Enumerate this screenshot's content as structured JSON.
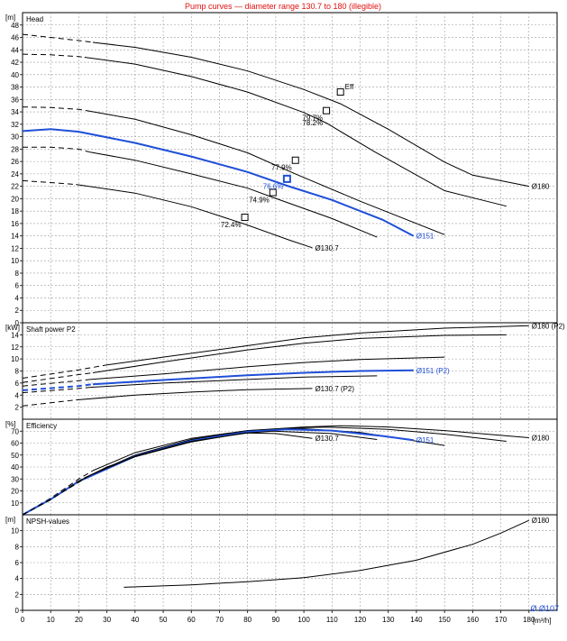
{
  "header_note": "Pump curves — diameter range 130.7 to 180 (illegible)",
  "x_axis": {
    "unit": "[m³/h]",
    "min": 0,
    "max": 190,
    "ticks": [
      0,
      10,
      20,
      30,
      40,
      50,
      60,
      70,
      80,
      90,
      100,
      110,
      120,
      130,
      140,
      150,
      160,
      170,
      180
    ]
  },
  "footer_note": "Ø Ø107",
  "chart_data": [
    {
      "type": "line",
      "panel": "head",
      "title": "Head",
      "ylabel": "[m]",
      "ylim": [
        0,
        50
      ],
      "yticks": [
        0,
        2,
        4,
        6,
        8,
        10,
        12,
        14,
        16,
        18,
        20,
        22,
        24,
        26,
        28,
        30,
        32,
        34,
        36,
        38,
        40,
        42,
        44,
        46,
        48
      ],
      "grid": true,
      "series": [
        {
          "name": "Ø180",
          "color": "#000000",
          "dashed": [
            [
              0,
              46.5
            ],
            [
              10,
              46.0
            ],
            [
              20,
              45.5
            ],
            [
              25,
              45.2
            ]
          ],
          "points": [
            [
              25,
              45.2
            ],
            [
              40,
              44.4
            ],
            [
              60,
              42.8
            ],
            [
              80,
              40.6
            ],
            [
              100,
              37.6
            ],
            [
              113,
              35.3
            ],
            [
              130,
              31.2
            ],
            [
              150,
              25.9
            ],
            [
              160,
              23.8
            ],
            [
              180,
              22.0
            ]
          ]
        },
        {
          "name": "",
          "color": "#000000",
          "dashed": [
            [
              0,
              43.3
            ],
            [
              10,
              43.2
            ],
            [
              20,
              42.9
            ],
            [
              22,
              42.8
            ]
          ],
          "points": [
            [
              22,
              42.8
            ],
            [
              40,
              41.7
            ],
            [
              60,
              39.7
            ],
            [
              80,
              37.2
            ],
            [
              100,
              33.9
            ],
            [
              108,
              32.2
            ],
            [
              125,
              27.6
            ],
            [
              150,
              21.3
            ],
            [
              172,
              18.8
            ]
          ]
        },
        {
          "name": "",
          "color": "#000000",
          "dashed": [
            [
              0,
              34.8
            ],
            [
              10,
              34.7
            ],
            [
              20,
              34.4
            ],
            [
              24,
              34.1
            ]
          ],
          "points": [
            [
              24,
              34.1
            ],
            [
              40,
              32.8
            ],
            [
              60,
              30.3
            ],
            [
              80,
              27.4
            ],
            [
              97,
              24.0
            ],
            [
              120,
              19.6
            ],
            [
              150,
              14.2
            ]
          ]
        },
        {
          "name": "Ø151",
          "color": "#1f4fd8",
          "bold": true,
          "dashed": [],
          "points": [
            [
              0,
              30.9
            ],
            [
              10,
              31.2
            ],
            [
              20,
              30.8
            ],
            [
              40,
              29.0
            ],
            [
              60,
              26.8
            ],
            [
              80,
              24.3
            ],
            [
              94,
              22.1
            ],
            [
              110,
              19.8
            ],
            [
              128,
              16.6
            ],
            [
              139,
              14.0
            ]
          ]
        },
        {
          "name": "",
          "color": "#000000",
          "dashed": [
            [
              0,
              28.3
            ],
            [
              10,
              28.3
            ],
            [
              20,
              28.0
            ],
            [
              24,
              27.5
            ]
          ],
          "points": [
            [
              24,
              27.5
            ],
            [
              40,
              26.2
            ],
            [
              60,
              24.0
            ],
            [
              80,
              21.7
            ],
            [
              89,
              20.2
            ],
            [
              110,
              16.8
            ],
            [
              126,
              13.8
            ]
          ]
        },
        {
          "name": "Ø130.7",
          "color": "#000000",
          "dashed": [
            [
              0,
              22.9
            ],
            [
              10,
              22.6
            ],
            [
              19,
              22.3
            ]
          ],
          "points": [
            [
              19,
              22.3
            ],
            [
              40,
              20.9
            ],
            [
              60,
              18.7
            ],
            [
              79,
              15.9
            ],
            [
              95,
              13.3
            ],
            [
              103,
              12.1
            ]
          ]
        }
      ],
      "markers": [
        {
          "x": 113,
          "y": 37.2,
          "label": "Eff",
          "color": "#000000"
        },
        {
          "x": 108,
          "y": 34.2,
          "label": "79.7%",
          "color": "#000000"
        },
        {
          "x": 97,
          "y": 26.2,
          "label": "77.9%",
          "color": "#000000"
        },
        {
          "x": 94,
          "y": 23.2,
          "label": "76.6%",
          "color": "#1f4fd8"
        },
        {
          "x": 89,
          "y": 21.0,
          "label": "74.9%",
          "color": "#000000"
        },
        {
          "x": 79,
          "y": 17.0,
          "label": "72.4%",
          "color": "#000000"
        }
      ],
      "extra_labels": [
        {
          "x": 108,
          "y": 33.4,
          "text": "78.2%",
          "color": "#000000"
        }
      ]
    },
    {
      "type": "line",
      "panel": "shaft_power",
      "title": "Shaft power P2",
      "ylabel": "[kW]",
      "ylim": [
        0,
        16
      ],
      "yticks": [
        2,
        4,
        6,
        8,
        10,
        12,
        14
      ],
      "grid": true,
      "series": [
        {
          "name": "Ø180 (P2)",
          "color": "#000000",
          "dashed": [
            [
              0,
              6.8
            ],
            [
              20,
              8.2
            ],
            [
              30,
              9.0
            ]
          ],
          "points": [
            [
              30,
              9.0
            ],
            [
              50,
              10.3
            ],
            [
              80,
              12.2
            ],
            [
              100,
              13.5
            ],
            [
              120,
              14.3
            ],
            [
              150,
              15.1
            ],
            [
              180,
              15.5
            ]
          ]
        },
        {
          "name": "",
          "color": "#000000",
          "dashed": [
            [
              0,
              6.1
            ],
            [
              20,
              7.4
            ],
            [
              25,
              7.7
            ]
          ],
          "points": [
            [
              25,
              7.7
            ],
            [
              50,
              9.5
            ],
            [
              80,
              11.5
            ],
            [
              100,
              12.6
            ],
            [
              120,
              13.4
            ],
            [
              150,
              13.9
            ],
            [
              172,
              14.0
            ]
          ]
        },
        {
          "name": "",
          "color": "#000000",
          "dashed": [
            [
              0,
              5.5
            ],
            [
              20,
              6.4
            ],
            [
              24,
              6.6
            ]
          ],
          "points": [
            [
              24,
              6.6
            ],
            [
              50,
              7.5
            ],
            [
              80,
              8.7
            ],
            [
              100,
              9.4
            ],
            [
              120,
              9.9
            ],
            [
              150,
              10.3
            ]
          ]
        },
        {
          "name": "Ø151 (P2)",
          "color": "#1f4fd8",
          "bold": true,
          "dashed": [
            [
              0,
              4.8
            ],
            [
              20,
              5.5
            ],
            [
              25,
              5.8
            ]
          ],
          "points": [
            [
              25,
              5.8
            ],
            [
              50,
              6.5
            ],
            [
              80,
              7.3
            ],
            [
              100,
              7.7
            ],
            [
              120,
              8.0
            ],
            [
              139,
              8.1
            ]
          ]
        },
        {
          "name": "",
          "color": "#000000",
          "dashed": [
            [
              0,
              4.4
            ],
            [
              20,
              5.1
            ],
            [
              24,
              5.3
            ]
          ],
          "points": [
            [
              24,
              5.3
            ],
            [
              50,
              6.0
            ],
            [
              80,
              6.6
            ],
            [
              100,
              7.0
            ],
            [
              126,
              7.2
            ]
          ]
        },
        {
          "name": "Ø130.7 (P2)",
          "color": "#000000",
          "dashed": [
            [
              0,
              2.2
            ],
            [
              19,
              3.2
            ]
          ],
          "points": [
            [
              19,
              3.2
            ],
            [
              40,
              4.0
            ],
            [
              60,
              4.5
            ],
            [
              80,
              4.9
            ],
            [
              103,
              5.1
            ]
          ]
        }
      ]
    },
    {
      "type": "line",
      "panel": "efficiency",
      "title": "Efficiency",
      "ylabel": "[%]",
      "ylim": [
        0,
        80
      ],
      "yticks": [
        10,
        20,
        30,
        40,
        50,
        60,
        70
      ],
      "grid": true,
      "series": [
        {
          "name": "Ø180",
          "color": "#000000",
          "dashed": [
            [
              0,
              0
            ],
            [
              10,
              14
            ],
            [
              20,
              30
            ],
            [
              25,
              37
            ]
          ],
          "points": [
            [
              25,
              37
            ],
            [
              40,
              52
            ],
            [
              60,
              64
            ],
            [
              80,
              70.5
            ],
            [
              100,
              73.5
            ],
            [
              113,
              74.6
            ],
            [
              130,
              73.5
            ],
            [
              150,
              70.5
            ],
            [
              160,
              68.5
            ],
            [
              180,
              64.5
            ]
          ]
        },
        {
          "name": "",
          "color": "#000000",
          "dashed": [
            [
              0,
              0
            ],
            [
              10,
              13.5
            ],
            [
              22,
              31
            ]
          ],
          "points": [
            [
              22,
              31
            ],
            [
              40,
              50
            ],
            [
              60,
              63
            ],
            [
              80,
              70
            ],
            [
              100,
              73
            ],
            [
              108,
              73.4
            ],
            [
              130,
              71.5
            ],
            [
              150,
              67.5
            ],
            [
              172,
              61.5
            ]
          ]
        },
        {
          "name": "",
          "color": "#000000",
          "dashed": [
            [
              0,
              0
            ],
            [
              10,
              13
            ],
            [
              24,
              33
            ]
          ],
          "points": [
            [
              24,
              33
            ],
            [
              40,
              50
            ],
            [
              60,
              63
            ],
            [
              80,
              70.5
            ],
            [
              97,
              72.5
            ],
            [
              120,
              69
            ],
            [
              150,
              58
            ]
          ]
        },
        {
          "name": "Ø151",
          "color": "#1f4fd8",
          "bold": true,
          "dashed": [],
          "points": [
            [
              0,
              0
            ],
            [
              10,
              13
            ],
            [
              20,
              28
            ],
            [
              40,
              49
            ],
            [
              60,
              62
            ],
            [
              80,
              69.5
            ],
            [
              94,
              71.5
            ],
            [
              110,
              70.5
            ],
            [
              128,
              66
            ],
            [
              139,
              62.5
            ]
          ]
        },
        {
          "name": "",
          "color": "#000000",
          "dashed": [
            [
              0,
              0
            ],
            [
              10,
              13
            ],
            [
              24,
              33
            ]
          ],
          "points": [
            [
              24,
              33
            ],
            [
              40,
              49
            ],
            [
              60,
              61.5
            ],
            [
              80,
              68.5
            ],
            [
              89,
              70
            ],
            [
              110,
              68
            ],
            [
              126,
              63
            ]
          ]
        },
        {
          "name": "Ø130.7",
          "color": "#000000",
          "dashed": [
            [
              0,
              0
            ],
            [
              10,
              12.5
            ],
            [
              19,
              27
            ]
          ],
          "points": [
            [
              19,
              27
            ],
            [
              30,
              40
            ],
            [
              40,
              48.5
            ],
            [
              60,
              61
            ],
            [
              79,
              68.5
            ],
            [
              90,
              68
            ],
            [
              103,
              64
            ]
          ]
        }
      ]
    },
    {
      "type": "line",
      "panel": "npsh",
      "title": "NPSH-values",
      "ylabel": "[m]",
      "ylim": [
        0,
        12
      ],
      "yticks": [
        0,
        2,
        4,
        6,
        8,
        10
      ],
      "grid": true,
      "series": [
        {
          "name": "Ø180",
          "color": "#000000",
          "dashed": [],
          "points": [
            [
              36,
              2.9
            ],
            [
              60,
              3.2
            ],
            [
              80,
              3.6
            ],
            [
              100,
              4.1
            ],
            [
              120,
              5.0
            ],
            [
              140,
              6.3
            ],
            [
              160,
              8.3
            ],
            [
              170,
              9.7
            ],
            [
              180,
              11.3
            ]
          ]
        }
      ]
    }
  ]
}
